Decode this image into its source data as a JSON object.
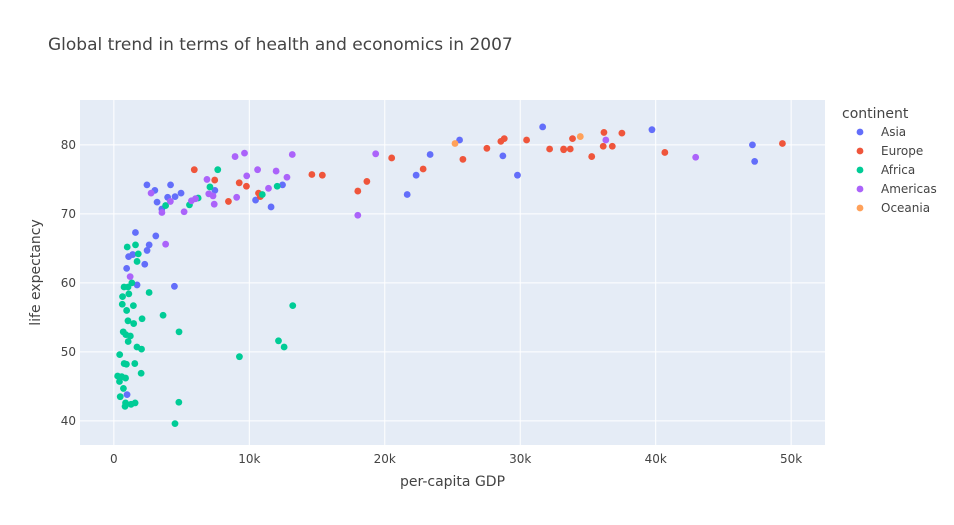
{
  "chart_data": {
    "type": "scatter",
    "title": "Global trend in terms of health and economics in 2007",
    "xlabel": "per-capita GDP",
    "ylabel": "life expectancy",
    "xlim": [
      -2500,
      52500
    ],
    "ylim": [
      36.5,
      86.5
    ],
    "x_ticks": [
      0,
      10000,
      20000,
      30000,
      40000,
      50000
    ],
    "x_tick_labels": [
      "0",
      "10k",
      "20k",
      "30k",
      "40k",
      "50k"
    ],
    "y_ticks": [
      40,
      50,
      60,
      70,
      80
    ],
    "y_tick_labels": [
      "40",
      "50",
      "60",
      "70",
      "80"
    ],
    "grid": true,
    "background": "#e5ecf6",
    "legend_title": "continent",
    "legend_position": "right",
    "series": [
      {
        "name": "Asia",
        "color": "#636efa",
        "points": [
          [
            974,
            43.8
          ],
          [
            29796,
            75.6
          ],
          [
            1391,
            64.1
          ],
          [
            1713,
            59.7
          ],
          [
            4959,
            73.0
          ],
          [
            39725,
            82.2
          ],
          [
            2452,
            64.7
          ],
          [
            3541,
            70.7
          ],
          [
            11606,
            71.0
          ],
          [
            4471,
            59.5
          ],
          [
            25523,
            80.7
          ],
          [
            31656,
            82.6
          ],
          [
            4519,
            72.5
          ],
          [
            1593,
            67.3
          ],
          [
            23348,
            78.6
          ],
          [
            47307,
            77.6
          ],
          [
            10461,
            72.0
          ],
          [
            12452,
            74.2
          ],
          [
            3096,
            66.8
          ],
          [
            944,
            62.1
          ],
          [
            1091,
            63.8
          ],
          [
            22316,
            75.6
          ],
          [
            2606,
            65.5
          ],
          [
            3190,
            71.7
          ],
          [
            21655,
            72.8
          ],
          [
            47143,
            80.0
          ],
          [
            3970,
            72.4
          ],
          [
            4185,
            74.2
          ],
          [
            28718,
            78.4
          ],
          [
            7458,
            73.4
          ],
          [
            2442,
            74.2
          ],
          [
            3026,
            73.4
          ],
          [
            2281,
            62.7
          ]
        ]
      },
      {
        "name": "Europe",
        "color": "#ef553b",
        "points": [
          [
            5937,
            76.4
          ],
          [
            36126,
            79.8
          ],
          [
            33693,
            79.4
          ],
          [
            7446,
            74.9
          ],
          [
            10681,
            73.0
          ],
          [
            14619,
            75.7
          ],
          [
            22833,
            76.5
          ],
          [
            35278,
            78.3
          ],
          [
            33207,
            79.3
          ],
          [
            30470,
            80.7
          ],
          [
            32170,
            79.4
          ],
          [
            27538,
            79.5
          ],
          [
            18009,
            73.3
          ],
          [
            36181,
            81.8
          ],
          [
            40676,
            78.9
          ],
          [
            28570,
            80.5
          ],
          [
            9254,
            74.5
          ],
          [
            36798,
            79.8
          ],
          [
            49357,
            80.2
          ],
          [
            15390,
            75.6
          ],
          [
            20510,
            78.1
          ],
          [
            10808,
            72.5
          ],
          [
            9787,
            74.0
          ],
          [
            18678,
            74.7
          ],
          [
            25768,
            77.9
          ],
          [
            28821,
            80.9
          ],
          [
            33860,
            80.9
          ],
          [
            37506,
            81.7
          ],
          [
            8458,
            71.8
          ],
          [
            33203,
            79.4
          ]
        ]
      },
      {
        "name": "Africa",
        "color": "#00cc96",
        "points": [
          [
            6223,
            72.3
          ],
          [
            4797,
            42.7
          ],
          [
            1441,
            56.7
          ],
          [
            12570,
            50.7
          ],
          [
            1217,
            52.3
          ],
          [
            430,
            49.6
          ],
          [
            2042,
            50.4
          ],
          [
            706,
            44.7
          ],
          [
            1704,
            50.7
          ],
          [
            986,
            65.2
          ],
          [
            278,
            46.5
          ],
          [
            3633,
            55.3
          ],
          [
            1545,
            48.3
          ],
          [
            2082,
            54.8
          ],
          [
            5581,
            71.3
          ],
          [
            12154,
            51.6
          ],
          [
            641,
            58.0
          ],
          [
            691,
            52.9
          ],
          [
            13206,
            56.7
          ],
          [
            753,
            59.4
          ],
          [
            1327,
            60.0
          ],
          [
            943,
            56.0
          ],
          [
            579,
            46.4
          ],
          [
            1463,
            54.1
          ],
          [
            1569,
            42.6
          ],
          [
            415,
            45.7
          ],
          [
            12057,
            74.0
          ],
          [
            1044,
            59.4
          ],
          [
            759,
            48.3
          ],
          [
            1042,
            54.5
          ],
          [
            1803,
            64.2
          ],
          [
            10957,
            72.8
          ],
          [
            3820,
            71.2
          ],
          [
            824,
            42.1
          ],
          [
            4811,
            52.9
          ],
          [
            620,
            56.9
          ],
          [
            2014,
            46.9
          ],
          [
            7670,
            76.4
          ],
          [
            863,
            46.2
          ],
          [
            1598,
            65.5
          ],
          [
            1712,
            63.1
          ],
          [
            862,
            42.6
          ],
          [
            926,
            48.2
          ],
          [
            9270,
            49.3
          ],
          [
            2602,
            58.6
          ],
          [
            4513,
            39.6
          ],
          [
            883,
            52.5
          ],
          [
            1107,
            58.4
          ],
          [
            7093,
            73.9
          ],
          [
            1056,
            51.5
          ],
          [
            1271,
            42.4
          ],
          [
            470,
            43.5
          ]
        ]
      },
      {
        "name": "Americas",
        "color": "#ab63fa",
        "points": [
          [
            12779,
            75.3
          ],
          [
            3822,
            65.6
          ],
          [
            9066,
            72.4
          ],
          [
            36319,
            80.7
          ],
          [
            13172,
            78.6
          ],
          [
            7007,
            72.9
          ],
          [
            9645,
            78.8
          ],
          [
            8948,
            78.3
          ],
          [
            6025,
            72.2
          ],
          [
            6873,
            74.99
          ],
          [
            5728,
            71.9
          ],
          [
            5186,
            70.3
          ],
          [
            1202,
            60.9
          ],
          [
            3548,
            70.2
          ],
          [
            7321,
            72.6
          ],
          [
            11978,
            76.2
          ],
          [
            2749,
            73.0
          ],
          [
            9809,
            75.5
          ],
          [
            4173,
            71.8
          ],
          [
            7409,
            71.4
          ],
          [
            19329,
            78.7
          ],
          [
            18009,
            69.8
          ],
          [
            42952,
            78.2
          ],
          [
            10611,
            76.4
          ],
          [
            11416,
            73.7
          ]
        ]
      },
      {
        "name": "Oceania",
        "color": "#ffa15a",
        "points": [
          [
            34435,
            81.2
          ],
          [
            25185,
            80.2
          ]
        ]
      }
    ]
  }
}
